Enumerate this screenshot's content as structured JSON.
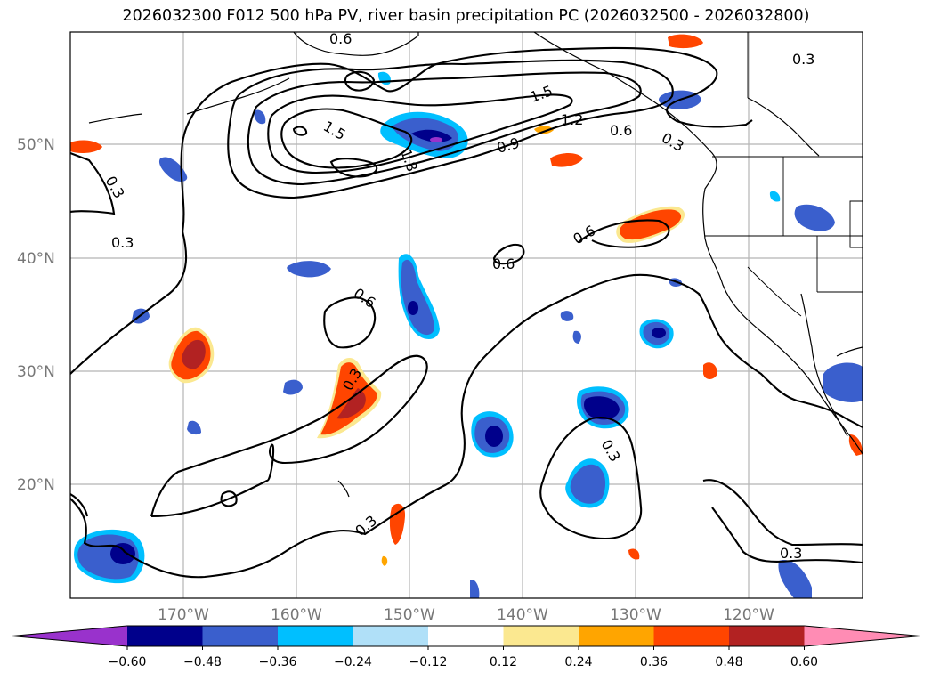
{
  "title": "2026032300 F012 500 hPa PV, river basin precipitation PC (2026032500 - 2026032800)",
  "lat_labels": [
    "50°N",
    "40°N",
    "30°N",
    "20°N"
  ],
  "lon_labels": [
    "170°W",
    "160°W",
    "150°W",
    "140°W",
    "130°W",
    "120°W"
  ],
  "contour_labels": [
    "0.6",
    "0.3",
    "1.5",
    "1.2",
    "0.6",
    "0.3",
    "1.5",
    "1.8",
    "0.9",
    "0.3",
    "0.3",
    "0.6",
    "0.6",
    "0.6",
    "0.3",
    "0.3",
    "0.3",
    "0.3"
  ],
  "colorbar": {
    "colors": [
      "#9932cc",
      "#00008b",
      "#3a5fcd",
      "#00bfff",
      "#b0e0f8",
      "#ffffff",
      "#fbe890",
      "#ffa500",
      "#ff4500",
      "#b22222",
      "#ff8cb4"
    ],
    "ticks": [
      "−0.60",
      "−0.48",
      "−0.36",
      "−0.24",
      "−0.12",
      "0.12",
      "0.24",
      "0.36",
      "0.48",
      "0.60"
    ]
  }
}
